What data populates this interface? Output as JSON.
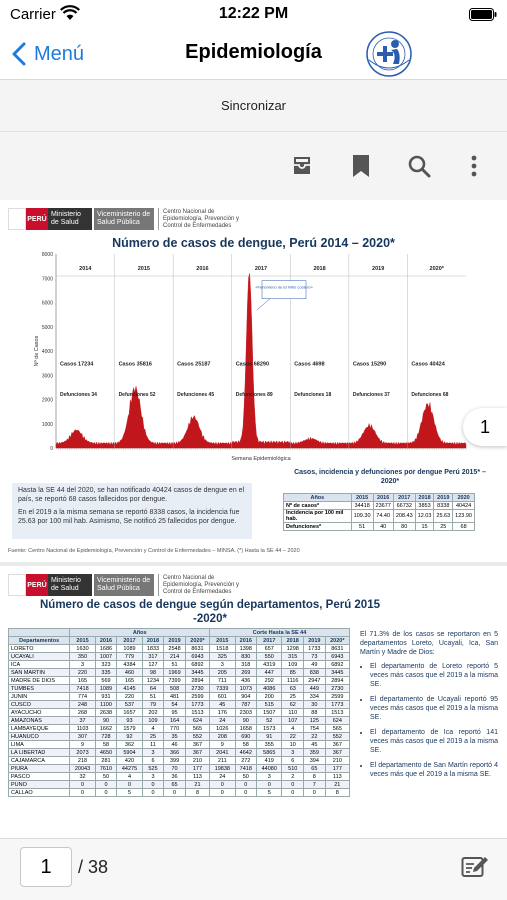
{
  "status": {
    "carrier": "Carrier",
    "time": "12:22 PM"
  },
  "nav": {
    "back_label": "Menú",
    "title": "Epidemiología"
  },
  "sync": {
    "label": "Sincronizar"
  },
  "toolbar": {
    "icons": [
      "archive-icon",
      "bookmark-icon",
      "search-icon",
      "more-vertical-icon"
    ]
  },
  "viewer": {
    "current_page_badge": "1",
    "page_input_value": "1",
    "page_total": "/ 38"
  },
  "page1": {
    "org": {
      "peru": "PERÚ",
      "ministry": "Ministerio de Salud",
      "vice": "Viceministerio de Salud Pública",
      "center": "Centro Nacional de Epidemiología, Prevención y Control de Enfermedades"
    },
    "title": "Número de casos de dengue, Perú 2014 – 2020*",
    "annotation": "«Fenómeno de El Niño costero»",
    "ylabel": "Nº de Casos",
    "xlabel": "Semana Epidemiológica",
    "text1": "Hasta la SE 44 del 2020, se han notificado 40424 casos de dengue en el país, se reportó 68 casos fallecidos por dengue.",
    "text2": "En el 2019 a la misma semana se reportó 8338 casos, la incidencia fue 25.63 por 100 mil hab. Asimismo, Se notificó 25 fallecidos por dengue.",
    "source": "Fuente: Centro Nacional de Epidemiología, Prevención y Control de Enfermedades – MINSA. (*) Hasta la SE 44 – 2020",
    "table_title": "Casos, incidencia y defunciones por dengue Perú 2015* – 2020*",
    "table": {
      "headers": [
        "Años",
        "2015",
        "2016",
        "2017",
        "2018",
        "2019",
        "2020"
      ],
      "rows": [
        [
          "Nº de casos*",
          "34418",
          "23677",
          "66732",
          "3853",
          "8338",
          "40424"
        ],
        [
          "Incidencia por 100 mil hab.",
          "109.30",
          "74.40",
          "208.43",
          "12.03",
          "25.63",
          "123.90"
        ],
        [
          "Defunciones*",
          "51",
          "40",
          "80",
          "15",
          "25",
          "68"
        ]
      ]
    }
  },
  "chart_data": {
    "type": "area",
    "title": "Número de casos de dengue, Perú 2014 – 2020*",
    "xlabel": "Semana Epidemiológica",
    "ylabel": "Nº de Casos",
    "ylim": [
      0,
      8000
    ],
    "yticks": [
      0,
      1000,
      2000,
      3000,
      4000,
      5000,
      6000,
      7000,
      8000
    ],
    "grid": false,
    "years": [
      {
        "year": "2014",
        "casos": "Casos 17234",
        "defunciones": "Defunciones 34",
        "peak": 550
      },
      {
        "year": "2015",
        "casos": "Casos 35816",
        "defunciones": "Defunciones 52",
        "peak": 2300
      },
      {
        "year": "2016",
        "casos": "Casos 25187",
        "defunciones": "Defunciones 45",
        "peak": 1100
      },
      {
        "year": "2017",
        "casos": "Casos 68290",
        "defunciones": "Defunciones 89",
        "peak": 7000
      },
      {
        "year": "2018",
        "casos": "Casos 4698",
        "defunciones": "Defunciones 18",
        "peak": 200
      },
      {
        "year": "2019",
        "casos": "Casos 15290",
        "defunciones": "Defunciones 37",
        "peak": 750
      },
      {
        "year": "2020*",
        "casos": "Casos 40424",
        "defunciones": "Defunciones 68",
        "peak": 1650
      }
    ],
    "color": "#c0161c"
  },
  "page2": {
    "title": "Número de casos de dengue según departamentos, Perú 2015 -2020*",
    "group_headers": [
      "Años",
      "Corte Hasta la SE 44"
    ],
    "headers": [
      "Departamentos",
      "2015",
      "2016",
      "2017",
      "2018",
      "2019",
      "2020*",
      "2015",
      "2016",
      "2017",
      "2018",
      "2019",
      "2020*"
    ],
    "rows": [
      [
        "LORETO",
        "1630",
        "1686",
        "1089",
        "1833",
        "2548",
        "8631",
        "1518",
        "1398",
        "657",
        "1298",
        "1733",
        "8631"
      ],
      [
        "UCAYALI",
        "350",
        "1007",
        "779",
        "317",
        "214",
        "6943",
        "325",
        "830",
        "550",
        "315",
        "73",
        "6943"
      ],
      [
        "ICA",
        "3",
        "323",
        "4384",
        "127",
        "51",
        "6892",
        "3",
        "318",
        "4319",
        "109",
        "49",
        "6892"
      ],
      [
        "SAN MARTIN",
        "220",
        "335",
        "460",
        "98",
        "1969",
        "3445",
        "205",
        "269",
        "447",
        "85",
        "838",
        "3445"
      ],
      [
        "MADRE DE DIOS",
        "165",
        "569",
        "165",
        "1234",
        "7399",
        "2894",
        "711",
        "436",
        "292",
        "1116",
        "2947",
        "2894"
      ],
      [
        "TUMBES",
        "7418",
        "1089",
        "4145",
        "64",
        "508",
        "2730",
        "7339",
        "1073",
        "4086",
        "63",
        "449",
        "2730"
      ],
      [
        "JUNIN",
        "774",
        "931",
        "220",
        "51",
        "481",
        "2599",
        "601",
        "904",
        "200",
        "25",
        "334",
        "2599"
      ],
      [
        "CUSCO",
        "248",
        "1100",
        "537",
        "79",
        "54",
        "1773",
        "45",
        "787",
        "515",
        "62",
        "30",
        "1773"
      ],
      [
        "AYACUCHO",
        "268",
        "2638",
        "1657",
        "202",
        "95",
        "1513",
        "176",
        "2303",
        "1507",
        "110",
        "88",
        "1513"
      ],
      [
        "AMAZONAS",
        "37",
        "90",
        "93",
        "109",
        "164",
        "624",
        "24",
        "90",
        "52",
        "107",
        "125",
        "624"
      ],
      [
        "LAMBAYEQUE",
        "1103",
        "1662",
        "1579",
        "4",
        "770",
        "565",
        "1026",
        "1658",
        "1573",
        "4",
        "754",
        "565"
      ],
      [
        "HUANUCO",
        "307",
        "728",
        "92",
        "25",
        "35",
        "552",
        "208",
        "690",
        "91",
        "22",
        "22",
        "552"
      ],
      [
        "LIMA",
        "9",
        "58",
        "362",
        "11",
        "46",
        "367",
        "9",
        "58",
        "355",
        "10",
        "45",
        "367"
      ],
      [
        "LA LIBERTAD",
        "2073",
        "4650",
        "5904",
        "3",
        "366",
        "367",
        "2041",
        "4642",
        "5865",
        "3",
        "359",
        "367"
      ],
      [
        "CAJAMARCA",
        "218",
        "281",
        "420",
        "6",
        "399",
        "210",
        "211",
        "272",
        "419",
        "6",
        "394",
        "210"
      ],
      [
        "PIURA",
        "20043",
        "7610",
        "44275",
        "525",
        "70",
        "177",
        "19838",
        "7418",
        "44080",
        "510",
        "65",
        "177"
      ],
      [
        "PASCO",
        "32",
        "50",
        "4",
        "3",
        "36",
        "113",
        "24",
        "50",
        "3",
        "2",
        "8",
        "113"
      ],
      [
        "PUNO",
        "0",
        "0",
        "0",
        "0",
        "65",
        "21",
        "0",
        "0",
        "0",
        "0",
        "7",
        "21"
      ],
      [
        "CALLAO",
        "0",
        "0",
        "5",
        "0",
        "0",
        "8",
        "0",
        "0",
        "5",
        "0",
        "0",
        "8"
      ]
    ],
    "summary": "El 71.3% de los casos se reportaron en 5 departamentos Loreto, Ucayali, Ica, San Martín y Madre de Dios:",
    "bullets": [
      "El departamento de Loreto reportó 5 veces más casos que el 2019 a la misma SE.",
      "El departamento de Ucayali reportó 95 veces más casos que el 2019 a la misma SE.",
      "El departamento de Ica reportó 141 veces más casos que el 2019 a la misma SE.",
      "El departamento de San Martín reportó 4 veces más que el 2019 a la misma SE."
    ]
  }
}
